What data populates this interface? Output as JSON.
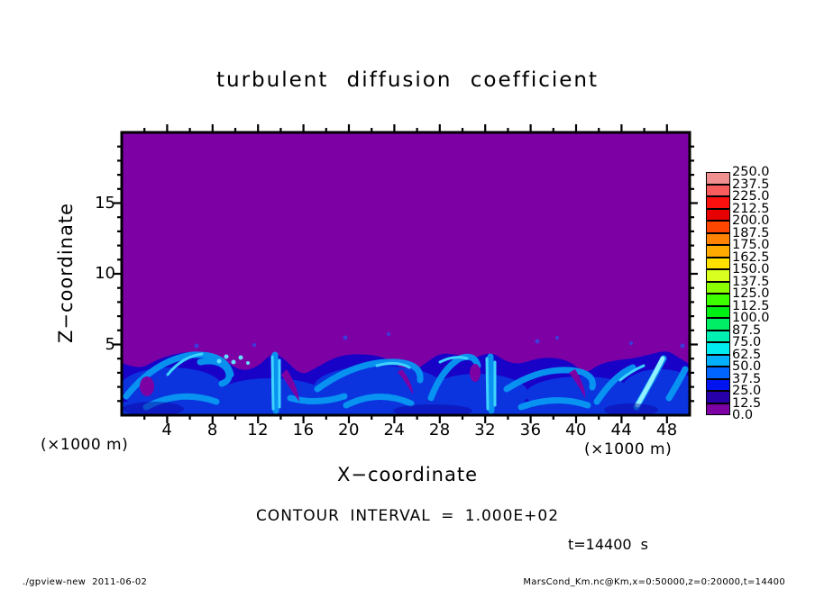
{
  "title": "turbulent diffusion coefficient",
  "axes": {
    "x": {
      "label": "X−coordinate",
      "units": "(×1000 m)",
      "range": [
        0,
        50
      ],
      "major_ticks": [
        4,
        8,
        12,
        16,
        20,
        24,
        28,
        32,
        36,
        40,
        44,
        48
      ],
      "major_step": 4,
      "minor_step": 2
    },
    "z": {
      "label": "Z−coordinate",
      "units": "(×1000 m)",
      "range": [
        0,
        20
      ],
      "major_ticks": [
        5,
        10,
        15
      ],
      "major_step": 5,
      "minor_step": 1
    }
  },
  "colorbar": {
    "labels_top_to_bottom": [
      "250.0",
      "237.5",
      "225.0",
      "212.5",
      "200.0",
      "187.5",
      "175.0",
      "162.5",
      "150.0",
      "137.5",
      "125.0",
      "112.5",
      "100.0",
      "87.5",
      "75.0",
      "62.5",
      "50.0",
      "37.5",
      "25.0",
      "12.5",
      "0.0"
    ],
    "cell_colors_top_to_bottom": [
      "#F09090",
      "#F85C5C",
      "#FB1010",
      "#E60000",
      "#FF4600",
      "#FF8200",
      "#FFAA00",
      "#FFE100",
      "#D8FF20",
      "#8CFF00",
      "#3CFF00",
      "#00F014",
      "#00EE66",
      "#00F0B4",
      "#00ECF0",
      "#00B0FF",
      "#0064FF",
      "#0014F0",
      "#2800AA",
      "#7D00A5"
    ]
  },
  "annotations": {
    "contour_interval": "CONTOUR INTERVAL = 1.000E+02",
    "time": "t=14400 s"
  },
  "footer": {
    "left": "./gpview-new  2011-06-02",
    "right": "MarsCond_Km.nc@Km,x=0:50000,z=0:20000,t=14400"
  },
  "chart_data": {
    "type": "heatmap",
    "title": "turbulent diffusion coefficient",
    "xlabel": "X-coordinate (×1000 m)",
    "ylabel": "Z-coordinate (×1000 m)",
    "xlim": [
      0,
      50
    ],
    "ylim": [
      0,
      20
    ],
    "time_label": "t=14400 s",
    "contour_interval_label": "CONTOUR INTERVAL = 1.000E+02",
    "levels": [
      0,
      12.5,
      25,
      37.5,
      50,
      62.5,
      75,
      87.5,
      100,
      112.5,
      125,
      137.5,
      150,
      162.5,
      175,
      187.5,
      200,
      212.5,
      225,
      237.5,
      250
    ],
    "palette_low_to_high": [
      "#7D00A5",
      "#2800AA",
      "#0014F0",
      "#0064FF",
      "#00B0FF",
      "#00ECF0",
      "#00F0B4",
      "#00EE66",
      "#00F014",
      "#3CFF00",
      "#8CFF00",
      "#D8FF20",
      "#FFE100",
      "#FFAA00",
      "#FF8200",
      "#FF4600",
      "#E60000",
      "#FB1010",
      "#F85C5C",
      "#F09090"
    ],
    "colors": {
      "plot_background": "#7D00A5",
      "turbulent_band_base": "#1802C8",
      "eddy_mid_blue": "#0A3AE2",
      "swirl_light_blue": "#0898F2",
      "filament_cyan": "#3FD4FF"
    },
    "field_summary": {
      "upper_region": "uniform lowest contour bin (0–12.5), purple, from boundary-layer top up to z=20",
      "turbulent_layer": "convective eddies, plumes and chimneys below z≈5 with values roughly 12.5–150 (blue to cyan)",
      "interface_profile_units": "x in ×1000 m, z in ×1000 m"
    },
    "interface_profile": [
      [
        0,
        3.7
      ],
      [
        1.5,
        3.2
      ],
      [
        3,
        3.9
      ],
      [
        4.5,
        4.3
      ],
      [
        6,
        4.5
      ],
      [
        7.5,
        4.4
      ],
      [
        9,
        3.9
      ],
      [
        10.5,
        3.1
      ],
      [
        12,
        3.4
      ],
      [
        13.3,
        4.5
      ],
      [
        14.3,
        4.0
      ],
      [
        15.8,
        2.8
      ],
      [
        17,
        3.3
      ],
      [
        19,
        4.2
      ],
      [
        21,
        4.35
      ],
      [
        23,
        4.15
      ],
      [
        24.5,
        3.4
      ],
      [
        25.5,
        3.0
      ],
      [
        26.8,
        3.7
      ],
      [
        28,
        4.4
      ],
      [
        29.5,
        4.3
      ],
      [
        31,
        4.0
      ],
      [
        32.5,
        4.5
      ],
      [
        33.8,
        3.8
      ],
      [
        35,
        3.6
      ],
      [
        36.5,
        4.0
      ],
      [
        38,
        4.1
      ],
      [
        39.5,
        3.8
      ],
      [
        40.8,
        2.9
      ],
      [
        42,
        3.6
      ],
      [
        43.5,
        3.9
      ],
      [
        45,
        4.0
      ],
      [
        46.5,
        4.3
      ],
      [
        48,
        4.6
      ],
      [
        49,
        4.1
      ],
      [
        50,
        3.6
      ]
    ]
  }
}
